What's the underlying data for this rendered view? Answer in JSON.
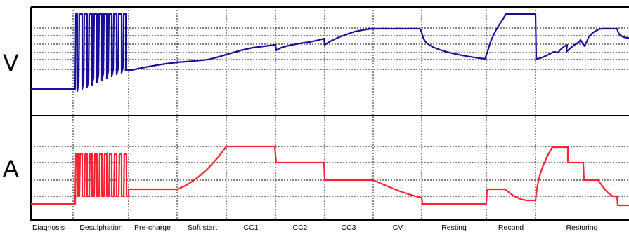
{
  "axes": {
    "voltage_label": "V",
    "current_label": "A"
  },
  "stages": [
    {
      "label": "Diagnosis"
    },
    {
      "label": "Desulphation"
    },
    {
      "label": "Pre-charge"
    },
    {
      "label": "Soft start"
    },
    {
      "label": "CC1"
    },
    {
      "label": "CC2"
    },
    {
      "label": "CC3"
    },
    {
      "label": "CV"
    },
    {
      "label": "Resting"
    },
    {
      "label": "Recond"
    },
    {
      "label": "Restoring"
    }
  ],
  "colors": {
    "voltage_trace": "#1a0e9c",
    "current_trace": "#ff2233",
    "frame": "#000000",
    "grid": "#000000"
  }
}
